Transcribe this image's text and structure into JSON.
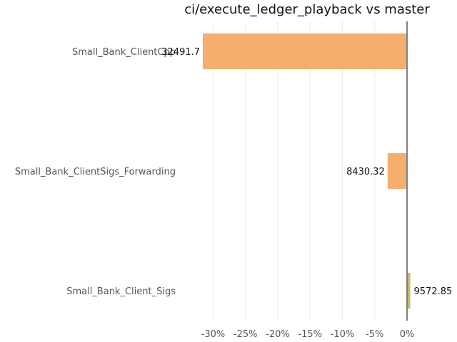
{
  "chart_data": {
    "type": "bar",
    "orientation": "horizontal",
    "title": "ci/execute_ledger_playback vs master",
    "xlabel": "",
    "ylabel": "",
    "grid": true,
    "xlim": [
      -33,
      0.7
    ],
    "x_ticks": [
      -30,
      -25,
      -20,
      -15,
      -10,
      -5,
      0
    ],
    "x_tick_format": "%",
    "categories": [
      "Small_Bank_ClientCpp",
      "Small_Bank_ClientSigs_Forwarding",
      "Small_Bank_Client_Sigs"
    ],
    "values": [
      -31.6,
      -3.0,
      0.5
    ],
    "value_labels": [
      "32491.7",
      "8430.32",
      "9572.85"
    ],
    "colors": [
      "#f5ae6e",
      "#f5ae6e",
      "#c4b86a"
    ]
  }
}
